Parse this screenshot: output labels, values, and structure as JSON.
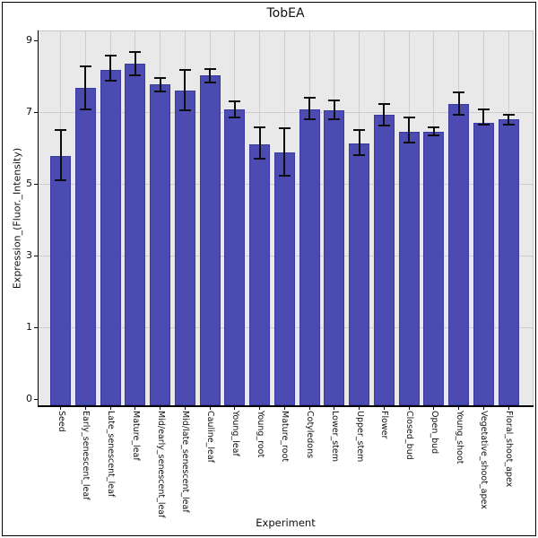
{
  "chart_data": {
    "type": "bar",
    "title": "TobEA",
    "xlabel": "Experiment",
    "ylabel": "Expression_(Fluor._Intensity)",
    "yticks": [
      0,
      1,
      3,
      5,
      7,
      9
    ],
    "ylim": [
      0,
      9.25
    ],
    "grid": true,
    "legend": "none",
    "colors": {
      "bar_fill": "#4B4BB2",
      "bar_edge": "#3A3AA0",
      "error_bar": "#0d0d0d",
      "plot_background": "#E9E9E9",
      "gridline": "#CDCDCD",
      "figure_background": "#FFFFFF",
      "frame_border": "#000000"
    },
    "categories": [
      "Seed",
      "Early_senescent_leaf",
      "Late_senescent_leaf",
      "Mature_leaf",
      "Mid/early_senescent_leaf",
      "Mid/late_senescent_leaf",
      "Cauline_leaf",
      "Young_leaf",
      "Young_root",
      "Mature_root",
      "Cotyledons",
      "Lower_stem",
      "Upper_stem",
      "Flower",
      "Closed_bud",
      "Open_bud",
      "Young_shoot",
      "Vegetative_shoot_apex",
      "Floral_shoot_apex"
    ],
    "series": [
      {
        "name": "Expression",
        "values": [
          5.78,
          7.68,
          8.18,
          8.35,
          7.77,
          7.6,
          8.02,
          7.08,
          6.1,
          5.88,
          7.08,
          7.04,
          6.13,
          6.92,
          6.46,
          6.46,
          7.23,
          6.69,
          6.79
        ],
        "error_high": [
          6.5,
          8.28,
          8.57,
          8.68,
          7.96,
          8.18,
          8.21,
          7.31,
          6.58,
          6.54,
          7.4,
          7.32,
          6.5,
          7.23,
          6.85,
          6.58,
          7.56,
          7.08,
          6.93
        ],
        "error_low": [
          5.1,
          7.08,
          7.88,
          8.02,
          7.58,
          7.04,
          7.83,
          6.85,
          5.69,
          5.23,
          6.81,
          6.79,
          5.79,
          6.63,
          6.14,
          6.35,
          6.93,
          6.64,
          6.64
        ]
      }
    ]
  }
}
